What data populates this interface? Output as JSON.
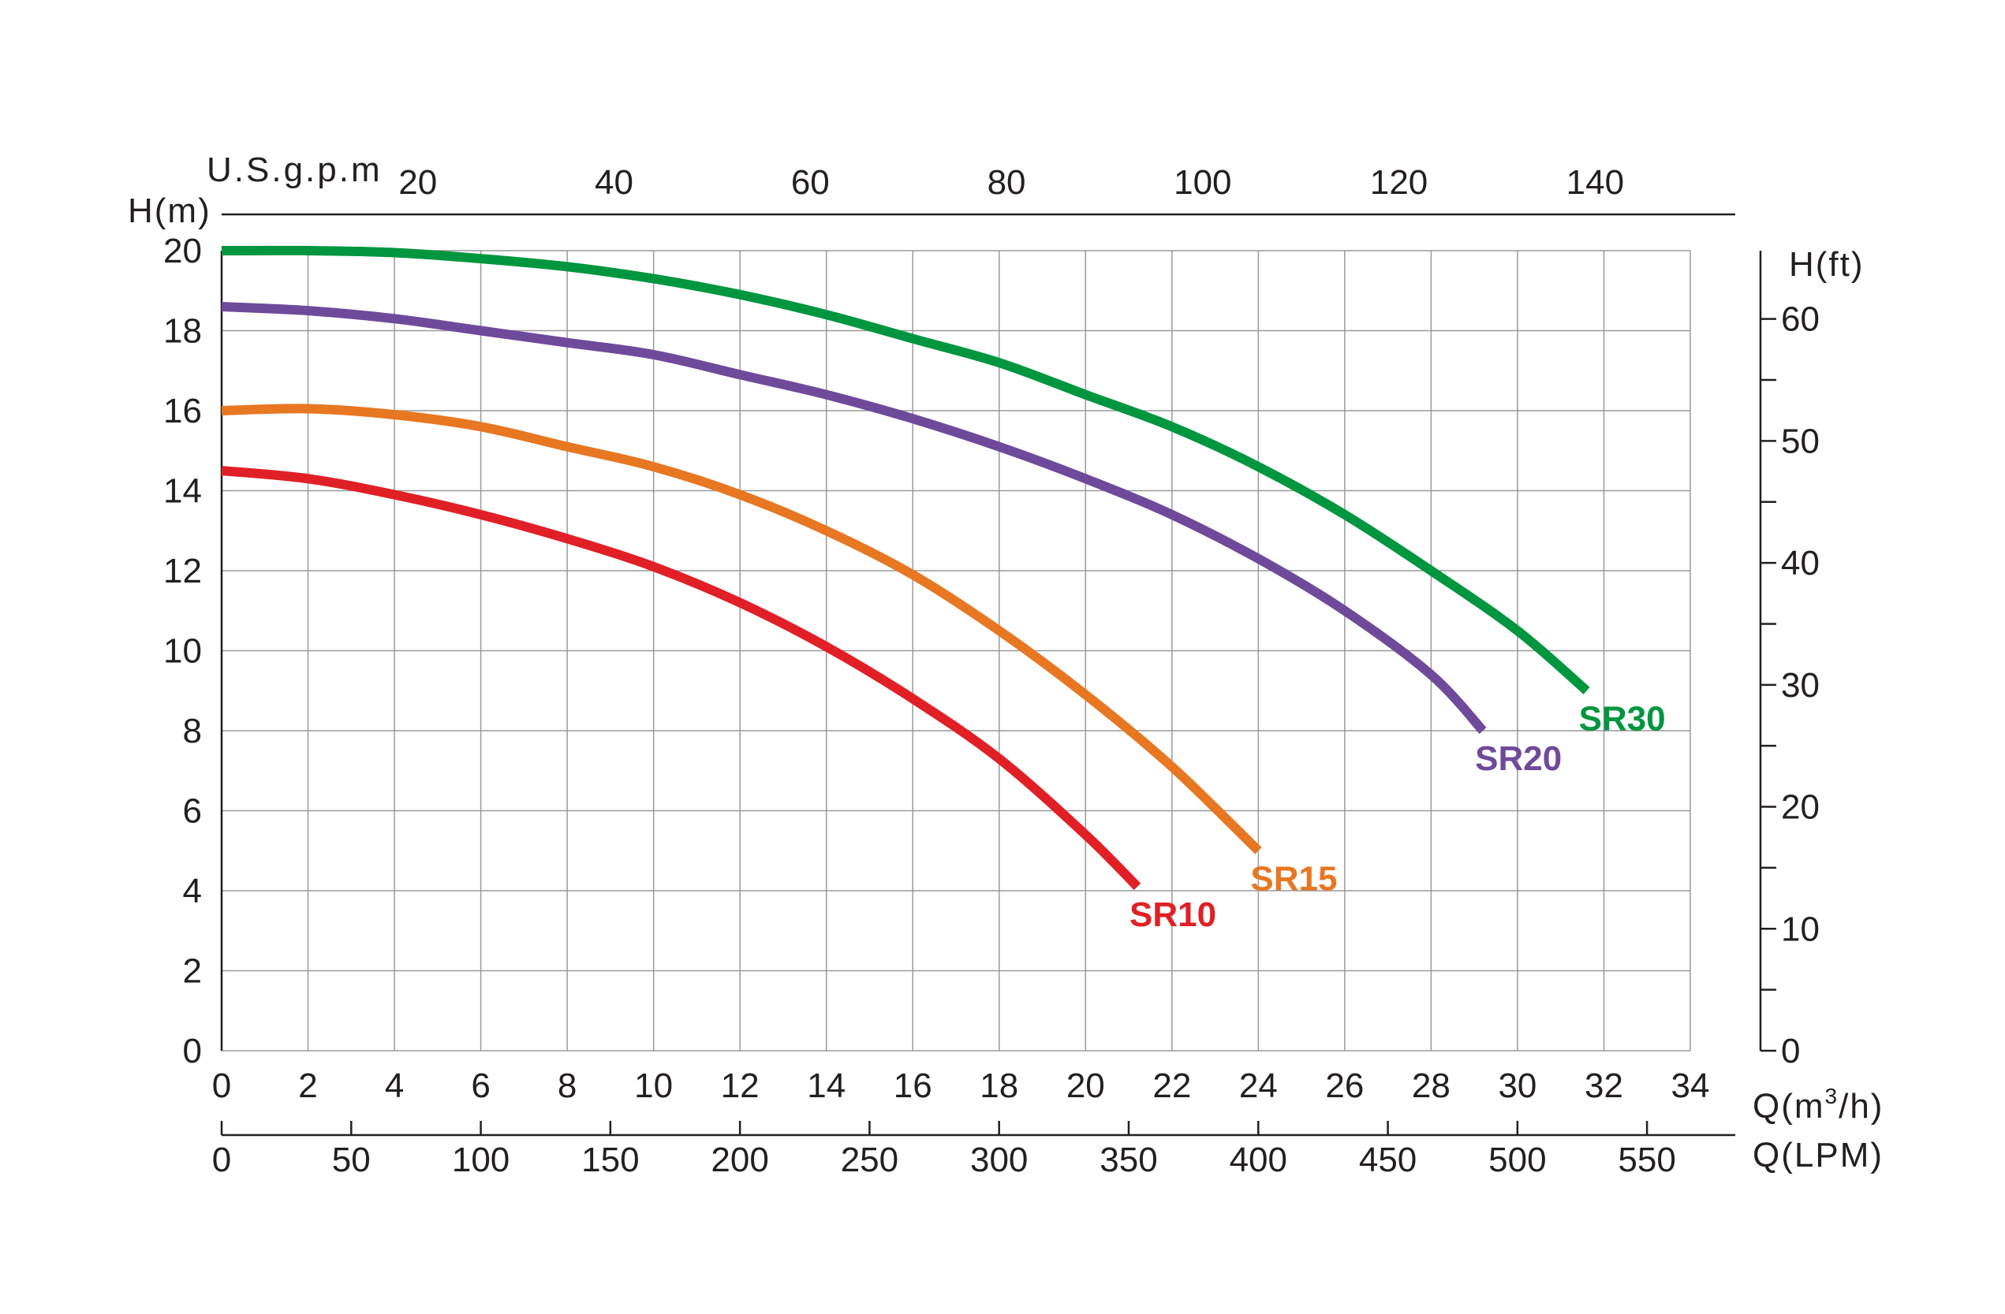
{
  "chart_data": {
    "type": "line",
    "title": "",
    "axes": {
      "left": {
        "label": "H(m)",
        "range": [
          0,
          20
        ],
        "ticks": [
          0,
          2,
          4,
          6,
          8,
          10,
          12,
          14,
          16,
          18,
          20
        ]
      },
      "right": {
        "label": "H(ft)",
        "range": [
          0,
          65.6
        ],
        "major_ticks": [
          0,
          10,
          20,
          30,
          40,
          50,
          60
        ],
        "minor_ticks": [
          5,
          15,
          25,
          35,
          45,
          55
        ]
      },
      "bottom": {
        "label": "Q(m³/h)",
        "label_main": "Q(m",
        "label_sup": "3",
        "label_end": "/h)",
        "range": [
          0,
          34
        ],
        "ticks": [
          0,
          2,
          4,
          6,
          8,
          10,
          12,
          14,
          16,
          18,
          20,
          22,
          24,
          26,
          28,
          30,
          32,
          34
        ]
      },
      "bottom_secondary": {
        "label": "Q(LPM)",
        "range": [
          0,
          566.7
        ],
        "ticks": [
          0,
          50,
          100,
          150,
          200,
          250,
          300,
          350,
          400,
          450,
          500,
          550
        ]
      },
      "top": {
        "label": "U.S.g.p.m",
        "range": [
          0,
          149.7
        ],
        "ticks": [
          20,
          40,
          60,
          80,
          100,
          120,
          140
        ]
      }
    },
    "grid": true,
    "x_unit": "m3/h",
    "y_unit": "m",
    "series": [
      {
        "name": "SR10",
        "color": "#e02026",
        "x": [
          0,
          2,
          4,
          6,
          8,
          10,
          12,
          14,
          16,
          18,
          20,
          21.2
        ],
        "y": [
          14.5,
          14.3,
          13.9,
          13.4,
          12.8,
          12.1,
          11.2,
          10.1,
          8.8,
          7.3,
          5.4,
          4.1
        ]
      },
      {
        "name": "SR15",
        "color": "#e87722",
        "x": [
          0,
          2,
          4,
          6,
          8,
          10,
          12,
          14,
          16,
          18,
          20,
          22,
          24
        ],
        "y": [
          16,
          16.05,
          15.9,
          15.6,
          15.1,
          14.6,
          13.9,
          13.0,
          11.9,
          10.5,
          8.9,
          7.1,
          5.0
        ]
      },
      {
        "name": "SR20",
        "color": "#6f4a9b",
        "x": [
          0,
          2,
          4,
          6,
          8,
          10,
          12,
          14,
          16,
          18,
          20,
          22,
          24,
          26,
          28,
          29.2
        ],
        "y": [
          18.6,
          18.5,
          18.3,
          18.0,
          17.7,
          17.4,
          16.9,
          16.4,
          15.8,
          15.1,
          14.3,
          13.4,
          12.3,
          11.0,
          9.4,
          8.0
        ]
      },
      {
        "name": "SR30",
        "color": "#00963f",
        "x": [
          0,
          2,
          4,
          6,
          8,
          10,
          12,
          14,
          16,
          18,
          20,
          22,
          24,
          26,
          28,
          30,
          31.6
        ],
        "y": [
          20,
          20,
          19.95,
          19.8,
          19.6,
          19.3,
          18.9,
          18.4,
          17.8,
          17.2,
          16.4,
          15.6,
          14.6,
          13.4,
          12.0,
          10.5,
          9.0
        ]
      }
    ]
  }
}
